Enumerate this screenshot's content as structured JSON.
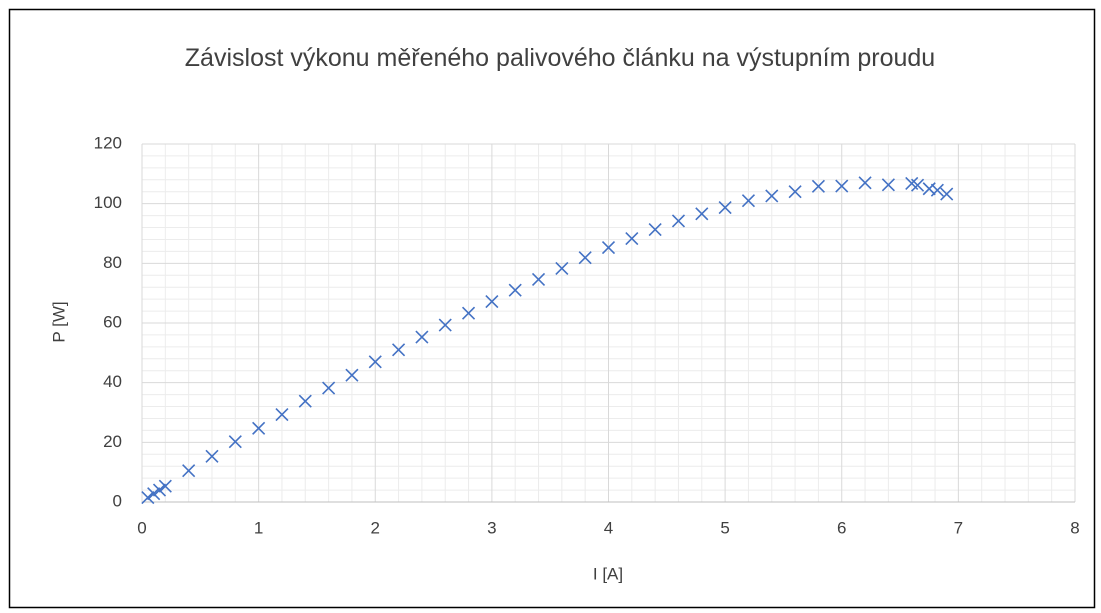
{
  "chart_data": {
    "type": "scatter",
    "title": "Závislost výkonu měřeného palivového článku na výstupním proudu",
    "xlabel": "I [A]",
    "ylabel": "P [W]",
    "series": [
      {
        "color": "#4472c4",
        "marker": "x",
        "x": [
          0.05,
          0.1,
          0.15,
          0.2,
          0.4,
          0.6,
          0.8,
          1.0,
          1.2,
          1.4,
          1.6,
          1.8,
          2.0,
          2.2,
          2.4,
          2.6,
          2.8,
          3.0,
          3.2,
          3.4,
          3.6,
          3.8,
          4.0,
          4.2,
          4.4,
          4.6,
          4.8,
          5.0,
          5.2,
          5.4,
          5.6,
          5.8,
          6.0,
          6.2,
          6.4,
          6.6,
          6.65,
          6.75,
          6.82,
          6.9
        ],
        "values": [
          1.5,
          2.8,
          4,
          5.3,
          10.5,
          15.3,
          20.2,
          24.7,
          29.3,
          33.8,
          38.2,
          42.5,
          47,
          51,
          55.3,
          59.3,
          63.3,
          67.2,
          71,
          74.6,
          78.3,
          81.9,
          85.3,
          88.3,
          91.3,
          94.2,
          96.6,
          98.7,
          101,
          102.6,
          104,
          105.8,
          105.9,
          107,
          106.3,
          106.8,
          106.2,
          105,
          104.5,
          103.2
        ]
      }
    ],
    "xlim": [
      0,
      8
    ],
    "xticks": [
      0,
      1,
      2,
      3,
      4,
      5,
      6,
      7,
      8
    ],
    "ylim": [
      0,
      120
    ],
    "yticks": [
      0,
      20,
      40,
      60,
      80,
      100,
      120
    ],
    "grid": true,
    "minor_grid": true
  }
}
